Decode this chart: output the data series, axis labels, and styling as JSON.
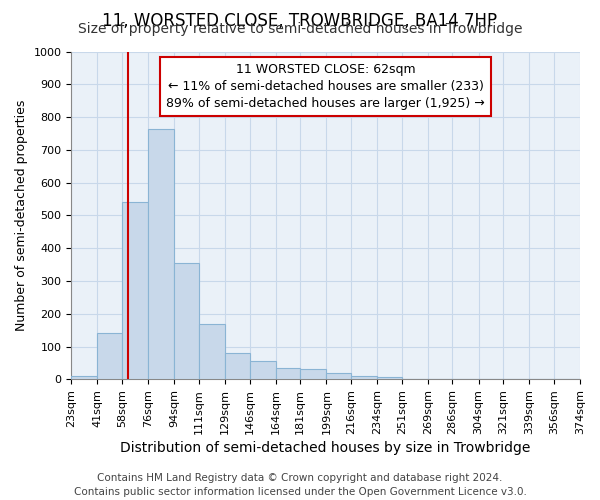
{
  "title": "11, WORSTED CLOSE, TROWBRIDGE, BA14 7HP",
  "subtitle": "Size of property relative to semi-detached houses in Trowbridge",
  "xlabel": "Distribution of semi-detached houses by size in Trowbridge",
  "ylabel": "Number of semi-detached properties",
  "bin_edges": [
    23,
    41,
    58,
    76,
    94,
    111,
    129,
    146,
    164,
    181,
    199,
    216,
    234,
    251,
    269,
    286,
    304,
    321,
    339,
    356,
    374
  ],
  "bar_heights": [
    10,
    140,
    540,
    765,
    355,
    170,
    80,
    55,
    35,
    33,
    20,
    10,
    7,
    0,
    0,
    0,
    0,
    0,
    0,
    0
  ],
  "bar_color": "#c8d8ea",
  "bar_edge_color": "#8ab4d4",
  "property_size": 62,
  "vline_color": "#cc0000",
  "annotation_line1": "11 WORSTED CLOSE: 62sqm",
  "annotation_line2": "← 11% of semi-detached houses are smaller (233)",
  "annotation_line3": "89% of semi-detached houses are larger (1,925) →",
  "annotation_box_color": "#ffffff",
  "annotation_box_edge": "#cc0000",
  "ylim": [
    0,
    1000
  ],
  "yticks": [
    0,
    100,
    200,
    300,
    400,
    500,
    600,
    700,
    800,
    900,
    1000
  ],
  "grid_color": "#c8d8ea",
  "background_color": "#ffffff",
  "plot_bg_color": "#eaf1f8",
  "footer_text": "Contains HM Land Registry data © Crown copyright and database right 2024.\nContains public sector information licensed under the Open Government Licence v3.0.",
  "title_fontsize": 12,
  "subtitle_fontsize": 10,
  "xlabel_fontsize": 10,
  "ylabel_fontsize": 9,
  "tick_fontsize": 8,
  "annotation_fontsize": 9,
  "footer_fontsize": 7.5
}
